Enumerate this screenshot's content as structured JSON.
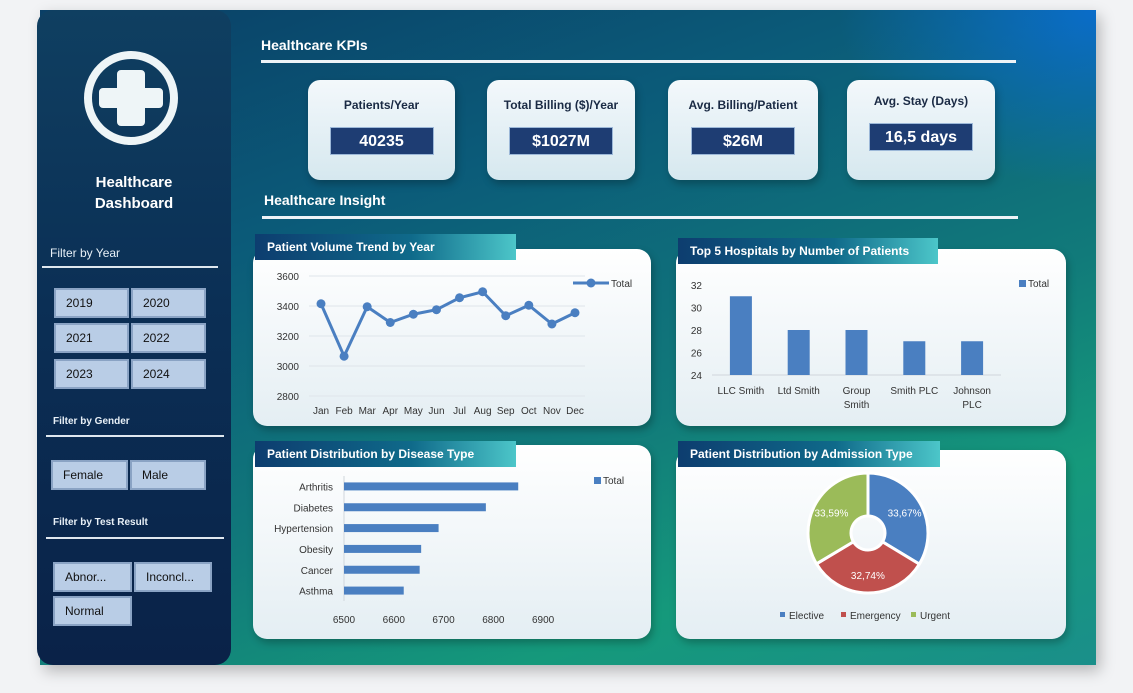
{
  "sidebar": {
    "title_line1": "Healthcare",
    "title_line2": "Dashboard",
    "filter_year_label": "Filter by Year",
    "years": [
      "2019",
      "2020",
      "2021",
      "2022",
      "2023",
      "2024"
    ],
    "filter_gender_label": "Filter by Gender",
    "genders": [
      "Female",
      "Male"
    ],
    "filter_test_label": "Filter by Test Result",
    "test_results": [
      "Abnor...",
      "Inconcl...",
      "Normal"
    ],
    "logo_icon": "medical-cross-icon"
  },
  "kpi_section_title": "Healthcare KPIs",
  "insight_section_title": "Healthcare Insight",
  "kpis": [
    {
      "label": "Patients/Year",
      "value": "40235"
    },
    {
      "label": "Total Billing ($)/Year",
      "value": "$1027M"
    },
    {
      "label": "Avg. Billing/Patient",
      "value": "$26M"
    },
    {
      "label": "Avg. Stay (Days)",
      "value": "16,5 days"
    }
  ],
  "colors": {
    "series_blue": "#4a7fc1",
    "elective": "#4a7fc1",
    "emergency": "#c0504d",
    "urgent": "#9bbb59"
  },
  "chart_data": [
    {
      "id": "volume",
      "type": "line",
      "title": "Patient Volume Trend by Year",
      "categories": [
        "Jan",
        "Feb",
        "Mar",
        "Apr",
        "May",
        "Jun",
        "Jul",
        "Aug",
        "Sep",
        "Oct",
        "Nov",
        "Dec"
      ],
      "series": [
        {
          "name": "Total",
          "values": [
            3415,
            3065,
            3395,
            3290,
            3345,
            3375,
            3455,
            3495,
            3335,
            3405,
            3280,
            3355
          ]
        }
      ],
      "ylim": [
        2800,
        3600
      ],
      "yticks": [
        2800,
        3000,
        3200,
        3400,
        3600
      ],
      "legend": "top-right"
    },
    {
      "id": "hospitals",
      "type": "bar",
      "title": "Top 5 Hospitals by Number of Patients",
      "categories": [
        "LLC Smith",
        "Ltd Smith",
        "Group Smith",
        "Smith PLC",
        "Johnson PLC"
      ],
      "category_lines": [
        [
          "LLC Smith"
        ],
        [
          "Ltd Smith"
        ],
        [
          "Group",
          "Smith"
        ],
        [
          "Smith PLC"
        ],
        [
          "Johnson",
          "PLC"
        ]
      ],
      "series": [
        {
          "name": "Total",
          "values": [
            31,
            28,
            28,
            27,
            27
          ]
        }
      ],
      "ylim": [
        24,
        32
      ],
      "yticks": [
        24,
        26,
        28,
        30,
        32
      ],
      "legend": "top-right"
    },
    {
      "id": "disease",
      "type": "bar",
      "orientation": "horizontal",
      "title": "Patient Distribution by Disease Type",
      "categories": [
        "Arthritis",
        "Diabetes",
        "Hypertension",
        "Obesity",
        "Cancer",
        "Asthma"
      ],
      "series": [
        {
          "name": "Total",
          "values": [
            6850,
            6785,
            6690,
            6655,
            6652,
            6620
          ]
        }
      ],
      "xlim": [
        6500,
        6950
      ],
      "xticks": [
        6500,
        6600,
        6700,
        6800,
        6900
      ],
      "legend": "top-right"
    },
    {
      "id": "admission",
      "type": "pie",
      "donut": true,
      "title": "Patient Distribution by Admission Type",
      "labels": [
        "Elective",
        "Emergency",
        "Urgent"
      ],
      "values": [
        33.67,
        32.74,
        33.59
      ],
      "value_labels": [
        "33,67%",
        "32,74%",
        "33,59%"
      ],
      "legend": "bottom"
    }
  ]
}
